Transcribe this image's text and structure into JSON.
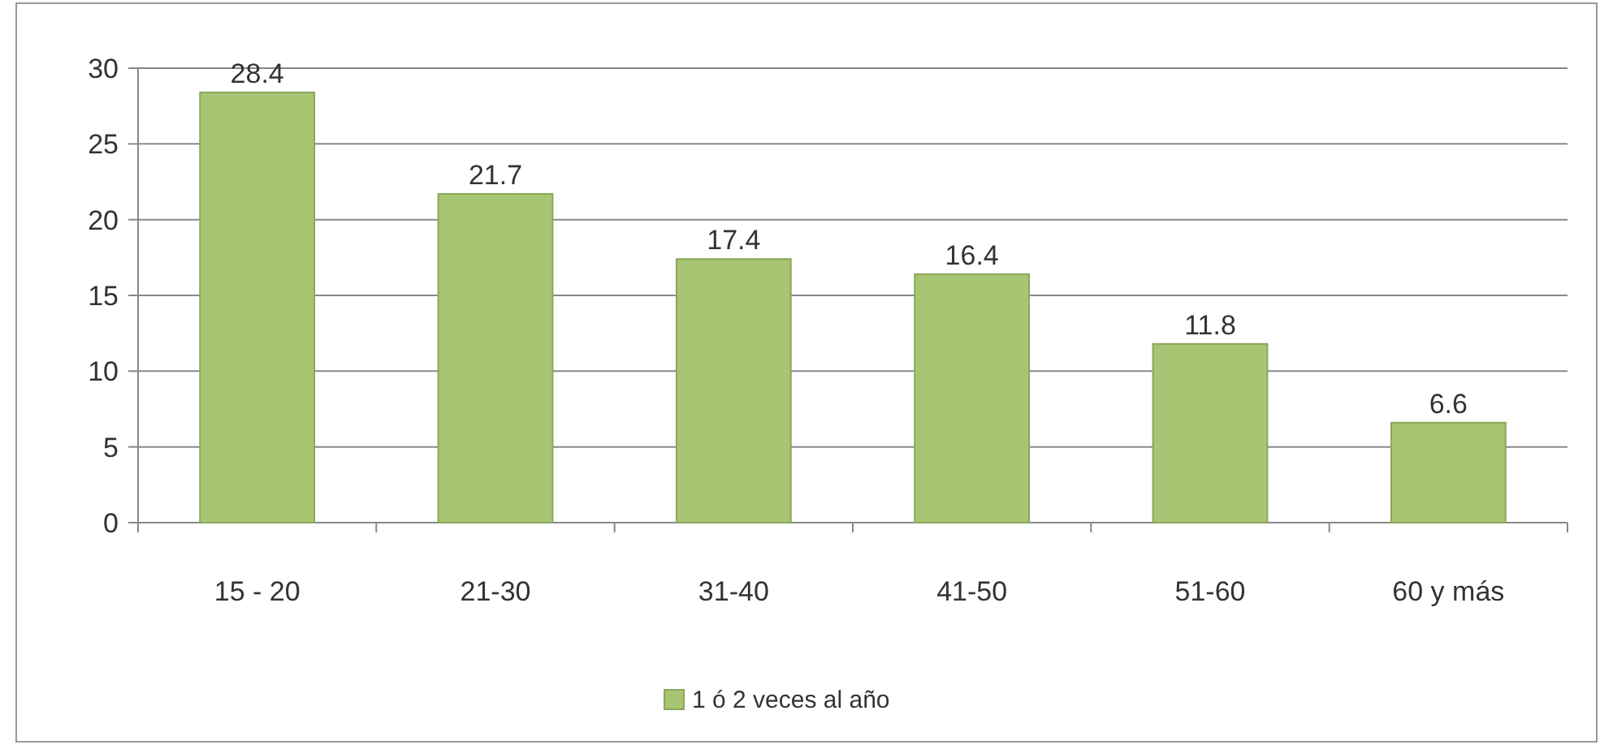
{
  "chart_data": {
    "type": "bar",
    "categories": [
      "15 - 20",
      "21-30",
      "31-40",
      "41-50",
      "51-60",
      "60 y más"
    ],
    "series": [
      {
        "name": "1 ó 2 veces al año",
        "color": "#a8c574",
        "values": [
          28.4,
          21.7,
          17.4,
          16.4,
          11.8,
          6.6
        ]
      }
    ],
    "ylim": [
      0,
      30
    ],
    "yticks": [
      0,
      5,
      10,
      15,
      20,
      25,
      30
    ],
    "grid": "y",
    "data_labels": true,
    "legend": "bottom"
  }
}
